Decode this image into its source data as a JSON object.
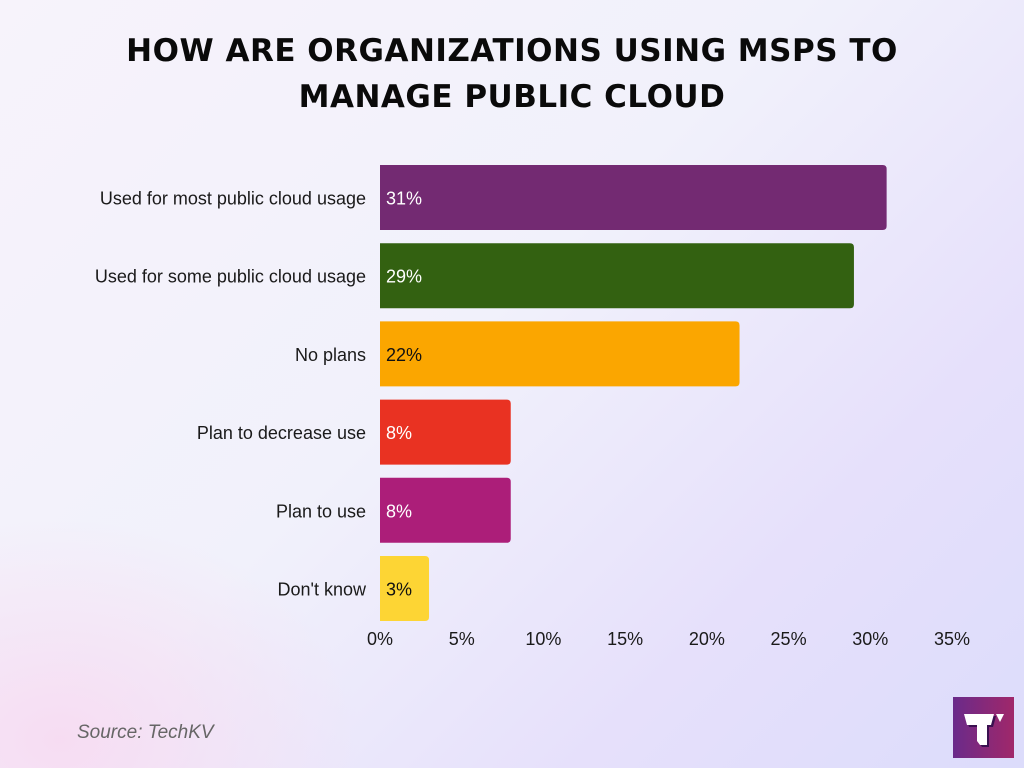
{
  "chart_data": {
    "type": "bar",
    "orientation": "horizontal",
    "title": "HOW ARE ORGANIZATIONS USING MSPS TO MANAGE PUBLIC CLOUD",
    "title_lines": [
      "HOW ARE ORGANIZATIONS USING MSPS TO",
      "MANAGE PUBLIC CLOUD"
    ],
    "categories": [
      "Used for most public cloud usage",
      "Used for some public cloud usage",
      "No plans",
      "Plan to decrease use",
      "Plan to use",
      "Don't know"
    ],
    "values": [
      31,
      29,
      22,
      8,
      8,
      3
    ],
    "data_labels": [
      "31%",
      "29%",
      "22%",
      "8%",
      "8%",
      "3%"
    ],
    "colors": [
      "#732a72",
      "#336111",
      "#fba600",
      "#e93222",
      "#ac1e79",
      "#fdd534"
    ],
    "label_colors": [
      "#ffffff",
      "#ffffff",
      "#111111",
      "#ffffff",
      "#ffffff",
      "#111111"
    ],
    "xlim": [
      0,
      35
    ],
    "xticks": [
      0,
      5,
      10,
      15,
      20,
      25,
      30,
      35
    ],
    "xtick_labels": [
      "0%",
      "5%",
      "10%",
      "15%",
      "20%",
      "25%",
      "30%",
      "35%"
    ],
    "xlabel": "",
    "ylabel": "",
    "grid": false,
    "legend": "none"
  },
  "source": "Source: TechKV",
  "logo_text": "T"
}
